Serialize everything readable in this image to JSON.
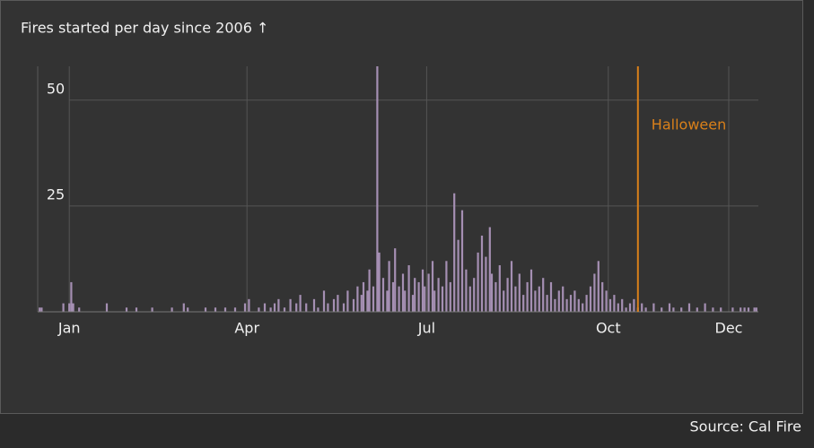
{
  "chart_data": {
    "type": "bar",
    "title": "Fires started per day since 2006 ↑",
    "source": "Source: Cal Fire",
    "color": "#a58fb3",
    "x": [
      1,
      2,
      13,
      16,
      17,
      18,
      21,
      35,
      45,
      50,
      58,
      68,
      74,
      76,
      85,
      90,
      95,
      100,
      105,
      107,
      112,
      115,
      118,
      120,
      122,
      125,
      128,
      131,
      133,
      136,
      140,
      142,
      145,
      147,
      150,
      152,
      155,
      157,
      160,
      162,
      164,
      165,
      167,
      168,
      170,
      172,
      173,
      175,
      177,
      178,
      180,
      181,
      183,
      185,
      186,
      188,
      190,
      191,
      193,
      195,
      196,
      198,
      200,
      201,
      203,
      205,
      207,
      209,
      211,
      213,
      215,
      217,
      219,
      221,
      223,
      225,
      227,
      229,
      230,
      232,
      234,
      236,
      238,
      240,
      242,
      244,
      246,
      248,
      250,
      252,
      254,
      256,
      258,
      260,
      262,
      264,
      266,
      268,
      270,
      272,
      274,
      276,
      278,
      280,
      282,
      284,
      286,
      288,
      290,
      292,
      294,
      296,
      298,
      300,
      302,
      304,
      306,
      308,
      312,
      316,
      320,
      322,
      326,
      330,
      334,
      338,
      342,
      346,
      352,
      356,
      358,
      360,
      363,
      364
    ],
    "values": [
      1,
      1,
      2,
      2,
      7,
      2,
      1,
      2,
      1,
      1,
      1,
      1,
      2,
      1,
      1,
      1,
      1,
      1,
      2,
      3,
      1,
      2,
      1,
      2,
      3,
      1,
      3,
      2,
      4,
      2,
      3,
      1,
      5,
      2,
      3,
      4,
      2,
      5,
      3,
      6,
      4,
      7,
      5,
      10,
      6,
      58,
      14,
      8,
      5,
      12,
      7,
      15,
      6,
      9,
      5,
      11,
      4,
      8,
      7,
      10,
      6,
      9,
      12,
      5,
      8,
      6,
      12,
      7,
      28,
      17,
      24,
      10,
      6,
      8,
      14,
      18,
      13,
      20,
      9,
      7,
      11,
      5,
      8,
      12,
      6,
      9,
      4,
      7,
      10,
      5,
      6,
      8,
      4,
      7,
      3,
      5,
      6,
      3,
      4,
      5,
      3,
      2,
      4,
      6,
      9,
      12,
      7,
      5,
      3,
      4,
      2,
      3,
      1,
      2,
      3,
      1,
      2,
      1,
      2,
      1,
      2,
      1,
      1,
      2,
      1,
      2,
      1,
      1,
      1,
      1,
      1,
      1,
      1,
      1
    ],
    "xlim": [
      0,
      365
    ],
    "ylim": [
      0,
      58
    ],
    "xticks": [
      {
        "value": 16,
        "label": "Jan"
      },
      {
        "value": 106,
        "label": "Apr"
      },
      {
        "value": 197,
        "label": "Jul"
      },
      {
        "value": 289,
        "label": "Oct"
      },
      {
        "value": 350,
        "label": "Dec"
      }
    ],
    "yticks": [
      25,
      50
    ],
    "grid": true,
    "annotation": {
      "x": 304,
      "label": "Halloween",
      "color": "#d9801a"
    }
  }
}
